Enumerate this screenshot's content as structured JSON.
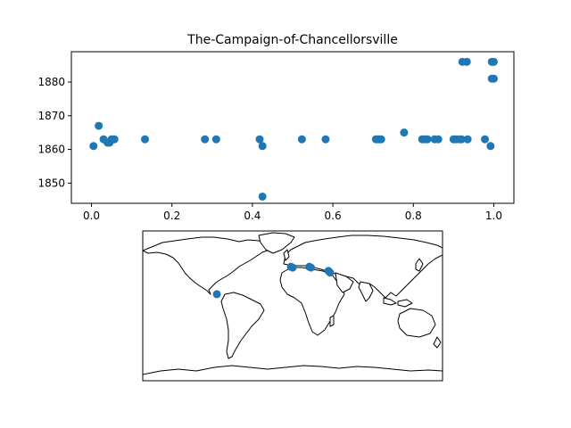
{
  "colors": {
    "marker": "#1f77b4",
    "axes": "#000000",
    "background": "#ffffff",
    "land": "#ffffff",
    "coast": "#000000"
  },
  "chart_data": [
    {
      "type": "scatter",
      "title": "The-Campaign-of-Chancellorsville",
      "xlabel": "",
      "ylabel": "",
      "xlim": [
        -0.05,
        1.05
      ],
      "ylim": [
        1844,
        1889
      ],
      "xticks": [
        "0.0",
        "0.2",
        "0.4",
        "0.6",
        "0.8",
        "1.0"
      ],
      "yticks": [
        "1850",
        "1860",
        "1870",
        "1880"
      ],
      "grid": false,
      "points": [
        {
          "x": 0.005,
          "y": 1861
        },
        {
          "x": 0.018,
          "y": 1867
        },
        {
          "x": 0.03,
          "y": 1863
        },
        {
          "x": 0.04,
          "y": 1862
        },
        {
          "x": 0.045,
          "y": 1862
        },
        {
          "x": 0.05,
          "y": 1863
        },
        {
          "x": 0.057,
          "y": 1863
        },
        {
          "x": 0.133,
          "y": 1863
        },
        {
          "x": 0.282,
          "y": 1863
        },
        {
          "x": 0.31,
          "y": 1863
        },
        {
          "x": 0.418,
          "y": 1863
        },
        {
          "x": 0.425,
          "y": 1861
        },
        {
          "x": 0.425,
          "y": 1846
        },
        {
          "x": 0.523,
          "y": 1863
        },
        {
          "x": 0.582,
          "y": 1863
        },
        {
          "x": 0.707,
          "y": 1863
        },
        {
          "x": 0.712,
          "y": 1863
        },
        {
          "x": 0.716,
          "y": 1863
        },
        {
          "x": 0.72,
          "y": 1863
        },
        {
          "x": 0.777,
          "y": 1865
        },
        {
          "x": 0.822,
          "y": 1863
        },
        {
          "x": 0.83,
          "y": 1863
        },
        {
          "x": 0.835,
          "y": 1863
        },
        {
          "x": 0.853,
          "y": 1863
        },
        {
          "x": 0.862,
          "y": 1863
        },
        {
          "x": 0.9,
          "y": 1863
        },
        {
          "x": 0.907,
          "y": 1863
        },
        {
          "x": 0.915,
          "y": 1863
        },
        {
          "x": 0.92,
          "y": 1863
        },
        {
          "x": 0.935,
          "y": 1863
        },
        {
          "x": 0.922,
          "y": 1886
        },
        {
          "x": 0.933,
          "y": 1886
        },
        {
          "x": 0.978,
          "y": 1863
        },
        {
          "x": 0.992,
          "y": 1861
        },
        {
          "x": 0.995,
          "y": 1886
        },
        {
          "x": 1.0,
          "y": 1886
        },
        {
          "x": 0.995,
          "y": 1881
        },
        {
          "x": 1.0,
          "y": 1881
        }
      ]
    },
    {
      "type": "scatter",
      "projection": "equirectangular",
      "xlim": [
        -180,
        180
      ],
      "ylim": [
        -90,
        90
      ],
      "points": [
        {
          "lon": -91,
          "lat": 14
        },
        {
          "lon": -2,
          "lat": 47
        },
        {
          "lon": 0,
          "lat": 46
        },
        {
          "lon": 20,
          "lat": 47
        },
        {
          "lon": 22,
          "lat": 46
        },
        {
          "lon": 43,
          "lat": 42
        },
        {
          "lon": 45,
          "lat": 40
        }
      ]
    }
  ]
}
